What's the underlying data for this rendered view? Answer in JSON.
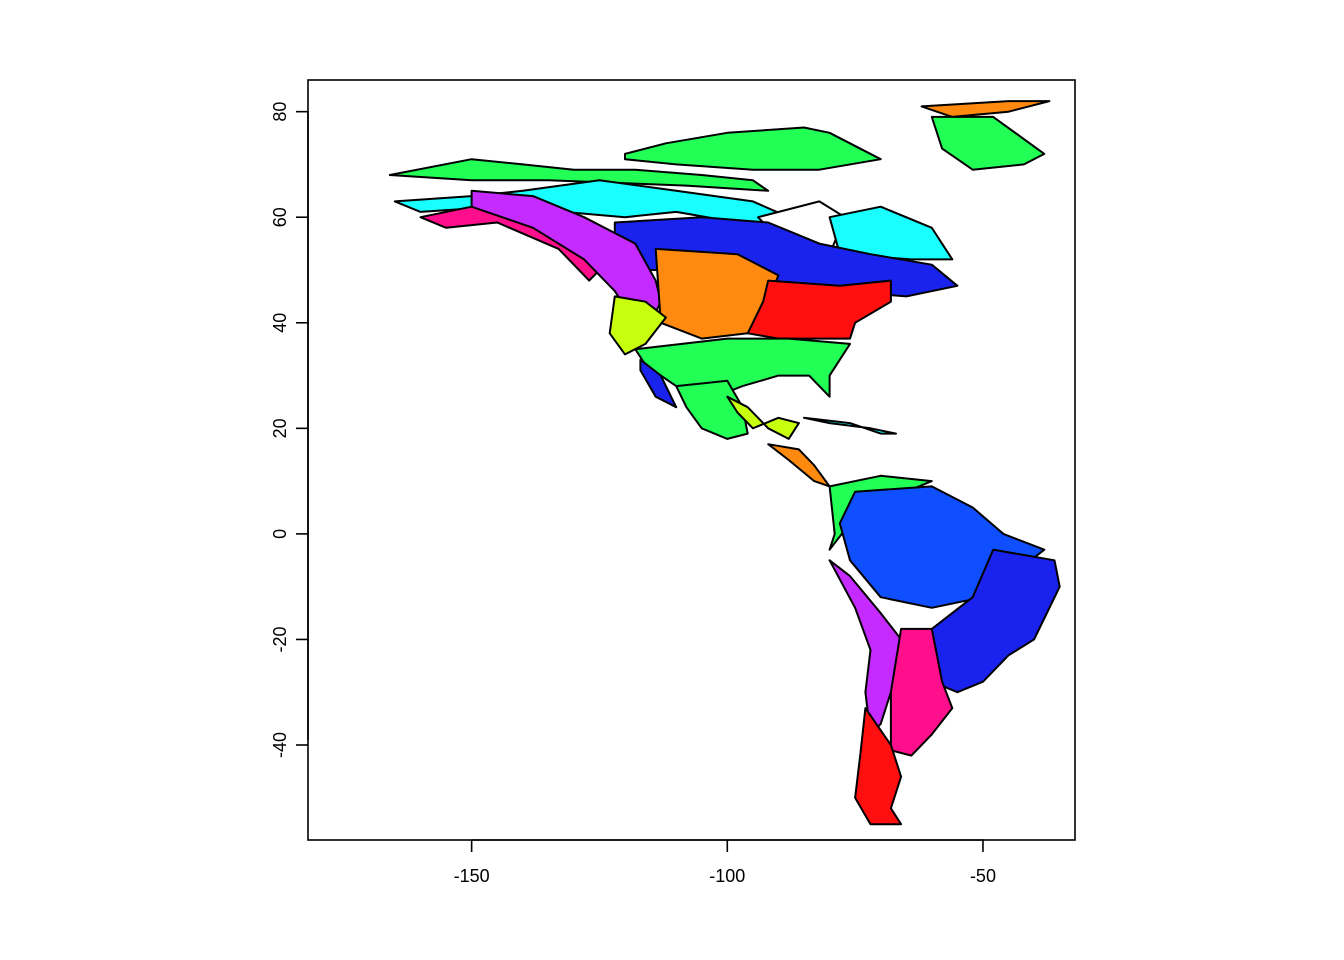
{
  "map": {
    "projection": "longitude-latitude",
    "x_range": [
      -182,
      -32
    ],
    "y_range": [
      -58,
      86
    ],
    "x_ticks": [
      -150,
      -100,
      -50
    ],
    "y_ticks": [
      80,
      60,
      40,
      20,
      0,
      -20,
      -40
    ],
    "x_tick_labels": [
      "-150",
      "-100",
      "-50"
    ],
    "y_tick_labels": [
      "80",
      "60",
      "40",
      "20",
      "0",
      "-20",
      "-40"
    ],
    "region_colors": {
      "green": "#22ff55",
      "cyan": "#19ffff",
      "blue": "#1a22ee",
      "royal_blue": "#0f4fff",
      "orange": "#ff8a0f",
      "red": "#ff0f0f",
      "magenta": "#ff0f8c",
      "purple": "#c52bff",
      "lime": "#c8ff0f",
      "white": "#ffffff"
    },
    "regions": [
      {
        "name": "arctic-archipelago",
        "color": "green",
        "points": [
          [
            -120,
            72
          ],
          [
            -112,
            74
          ],
          [
            -100,
            76
          ],
          [
            -85,
            77
          ],
          [
            -80,
            76
          ],
          [
            -70,
            71
          ],
          [
            -82,
            69
          ],
          [
            -95,
            69
          ],
          [
            -110,
            70
          ],
          [
            -120,
            71
          ]
        ]
      },
      {
        "name": "greenland-north",
        "color": "orange",
        "points": [
          [
            -62,
            81
          ],
          [
            -45,
            82
          ],
          [
            -37,
            82
          ],
          [
            -45,
            80
          ],
          [
            -56,
            79
          ]
        ]
      },
      {
        "name": "greenland-east",
        "color": "green",
        "points": [
          [
            -60,
            79
          ],
          [
            -48,
            79
          ],
          [
            -38,
            72
          ],
          [
            -42,
            70
          ],
          [
            -52,
            69
          ],
          [
            -58,
            73
          ]
        ]
      },
      {
        "name": "alaska-north",
        "color": "green",
        "points": [
          [
            -166,
            68
          ],
          [
            -150,
            71
          ],
          [
            -140,
            70
          ],
          [
            -130,
            69
          ],
          [
            -118,
            69
          ],
          [
            -105,
            68
          ],
          [
            -95,
            67
          ],
          [
            -92,
            65
          ],
          [
            -108,
            66
          ],
          [
            -135,
            67
          ],
          [
            -150,
            67
          ]
        ]
      },
      {
        "name": "subarctic-band",
        "color": "cyan",
        "points": [
          [
            -165,
            63
          ],
          [
            -150,
            64
          ],
          [
            -140,
            65
          ],
          [
            -125,
            67
          ],
          [
            -110,
            65
          ],
          [
            -95,
            63
          ],
          [
            -88,
            60
          ],
          [
            -90,
            58
          ],
          [
            -98,
            59
          ],
          [
            -110,
            61
          ],
          [
            -120,
            60
          ],
          [
            -132,
            61
          ],
          [
            -145,
            62
          ],
          [
            -160,
            61
          ]
        ]
      },
      {
        "name": "hudson-bay",
        "color": "white",
        "points": [
          [
            -94,
            60
          ],
          [
            -82,
            63
          ],
          [
            -77,
            60
          ],
          [
            -80,
            53
          ],
          [
            -90,
            56
          ]
        ]
      },
      {
        "name": "labrador",
        "color": "cyan",
        "points": [
          [
            -80,
            60
          ],
          [
            -70,
            62
          ],
          [
            -60,
            58
          ],
          [
            -56,
            52
          ],
          [
            -64,
            52
          ],
          [
            -78,
            53
          ]
        ]
      },
      {
        "name": "boreal-band",
        "color": "blue",
        "points": [
          [
            -122,
            59
          ],
          [
            -105,
            60
          ],
          [
            -92,
            59
          ],
          [
            -82,
            55
          ],
          [
            -72,
            53
          ],
          [
            -60,
            51
          ],
          [
            -55,
            47
          ],
          [
            -65,
            45
          ],
          [
            -78,
            46
          ],
          [
            -92,
            48
          ],
          [
            -105,
            50
          ],
          [
            -122,
            50
          ]
        ]
      },
      {
        "name": "alaska-coast",
        "color": "magenta",
        "points": [
          [
            -160,
            60
          ],
          [
            -150,
            62
          ],
          [
            -140,
            61
          ],
          [
            -130,
            57
          ],
          [
            -125,
            50
          ],
          [
            -127,
            48
          ],
          [
            -133,
            54
          ],
          [
            -145,
            59
          ],
          [
            -155,
            58
          ]
        ]
      },
      {
        "name": "cordillera",
        "color": "purple",
        "points": [
          [
            -150,
            65
          ],
          [
            -138,
            64
          ],
          [
            -128,
            60
          ],
          [
            -118,
            55
          ],
          [
            -114,
            48
          ],
          [
            -113,
            44
          ],
          [
            -115,
            40
          ],
          [
            -118,
            40
          ],
          [
            -122,
            46
          ],
          [
            -128,
            52
          ],
          [
            -138,
            58
          ],
          [
            -150,
            62
          ]
        ]
      },
      {
        "name": "great-plains",
        "color": "orange",
        "points": [
          [
            -114,
            54
          ],
          [
            -98,
            53
          ],
          [
            -90,
            49
          ],
          [
            -92,
            44
          ],
          [
            -96,
            38
          ],
          [
            -105,
            37
          ],
          [
            -113,
            40
          ]
        ]
      },
      {
        "name": "great-basin",
        "color": "lime",
        "points": [
          [
            -122,
            45
          ],
          [
            -116,
            44
          ],
          [
            -112,
            41
          ],
          [
            -116,
            36
          ],
          [
            -120,
            34
          ],
          [
            -123,
            38
          ]
        ]
      },
      {
        "name": "eastern-forest",
        "color": "red",
        "points": [
          [
            -92,
            48
          ],
          [
            -78,
            47
          ],
          [
            -68,
            48
          ],
          [
            -68,
            44
          ],
          [
            -75,
            40
          ],
          [
            -76,
            37
          ],
          [
            -90,
            37
          ],
          [
            -96,
            38
          ],
          [
            -93,
            44
          ]
        ]
      },
      {
        "name": "southern-plains",
        "color": "green",
        "points": [
          [
            -118,
            35
          ],
          [
            -100,
            37
          ],
          [
            -88,
            37
          ],
          [
            -76,
            36
          ],
          [
            -80,
            30
          ],
          [
            -80,
            26
          ],
          [
            -84,
            30
          ],
          [
            -90,
            30
          ],
          [
            -97,
            28
          ],
          [
            -105,
            25
          ],
          [
            -110,
            28
          ],
          [
            -116,
            32
          ]
        ]
      },
      {
        "name": "baja-coast",
        "color": "blue",
        "points": [
          [
            -117,
            33
          ],
          [
            -113,
            30
          ],
          [
            -110,
            24
          ],
          [
            -114,
            26
          ],
          [
            -117,
            31
          ]
        ]
      },
      {
        "name": "mexican-lowlands",
        "color": "green",
        "points": [
          [
            -110,
            28
          ],
          [
            -100,
            29
          ],
          [
            -97,
            24
          ],
          [
            -96,
            19
          ],
          [
            -100,
            18
          ],
          [
            -105,
            20
          ],
          [
            -108,
            24
          ]
        ]
      },
      {
        "name": "gulf-coast",
        "color": "lime",
        "points": [
          [
            -100,
            26
          ],
          [
            -96,
            24
          ],
          [
            -92,
            20
          ],
          [
            -88,
            18
          ],
          [
            -86,
            21
          ],
          [
            -90,
            22
          ],
          [
            -95,
            20
          ],
          [
            -98,
            23
          ]
        ]
      },
      {
        "name": "caribbean-islands",
        "color": "cyan",
        "points": [
          [
            -85,
            22
          ],
          [
            -76,
            21
          ],
          [
            -70,
            19
          ],
          [
            -67,
            19
          ],
          [
            -72,
            20
          ],
          [
            -80,
            21
          ]
        ]
      },
      {
        "name": "central-america",
        "color": "orange",
        "points": [
          [
            -92,
            17
          ],
          [
            -86,
            16
          ],
          [
            -83,
            13
          ],
          [
            -80,
            9
          ],
          [
            -83,
            10
          ],
          [
            -88,
            14
          ]
        ]
      },
      {
        "name": "northern-andes",
        "color": "green",
        "points": [
          [
            -80,
            9
          ],
          [
            -70,
            11
          ],
          [
            -60,
            10
          ],
          [
            -65,
            8
          ],
          [
            -72,
            6
          ],
          [
            -76,
            2
          ],
          [
            -80,
            -3
          ],
          [
            -79,
            0
          ]
        ]
      },
      {
        "name": "amazon",
        "color": "royal_blue",
        "points": [
          [
            -75,
            8
          ],
          [
            -60,
            9
          ],
          [
            -52,
            5
          ],
          [
            -46,
            0
          ],
          [
            -38,
            -3
          ],
          [
            -42,
            -6
          ],
          [
            -50,
            -12
          ],
          [
            -60,
            -14
          ],
          [
            -70,
            -12
          ],
          [
            -76,
            -5
          ],
          [
            -78,
            2
          ]
        ]
      },
      {
        "name": "brazilian-highlands",
        "color": "blue",
        "points": [
          [
            -48,
            -3
          ],
          [
            -36,
            -5
          ],
          [
            -35,
            -10
          ],
          [
            -40,
            -20
          ],
          [
            -45,
            -23
          ],
          [
            -50,
            -28
          ],
          [
            -55,
            -30
          ],
          [
            -60,
            -28
          ],
          [
            -60,
            -18
          ],
          [
            -52,
            -12
          ]
        ]
      },
      {
        "name": "central-andes",
        "color": "purple",
        "points": [
          [
            -80,
            -5
          ],
          [
            -76,
            -8
          ],
          [
            -70,
            -15
          ],
          [
            -66,
            -20
          ],
          [
            -68,
            -30
          ],
          [
            -70,
            -36
          ],
          [
            -72,
            -38
          ],
          [
            -73,
            -30
          ],
          [
            -72,
            -22
          ],
          [
            -75,
            -14
          ]
        ]
      },
      {
        "name": "pampas",
        "color": "magenta",
        "points": [
          [
            -66,
            -18
          ],
          [
            -60,
            -18
          ],
          [
            -58,
            -28
          ],
          [
            -56,
            -33
          ],
          [
            -60,
            -38
          ],
          [
            -64,
            -42
          ],
          [
            -68,
            -41
          ],
          [
            -68,
            -30
          ]
        ]
      },
      {
        "name": "patagonia",
        "color": "red",
        "points": [
          [
            -73,
            -33
          ],
          [
            -68,
            -40
          ],
          [
            -66,
            -46
          ],
          [
            -68,
            -52
          ],
          [
            -66,
            -55
          ],
          [
            -72,
            -55
          ],
          [
            -75,
            -50
          ],
          [
            -74,
            -42
          ]
        ]
      }
    ]
  }
}
